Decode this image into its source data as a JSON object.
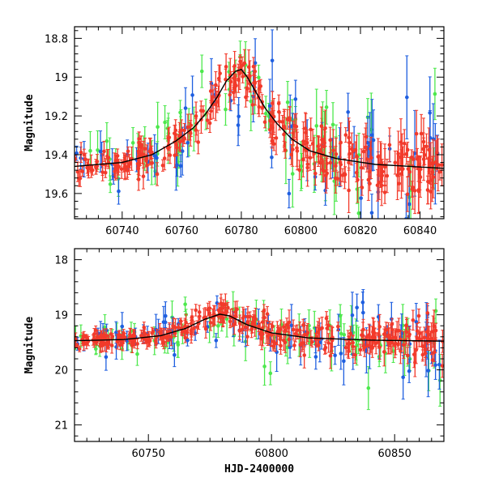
{
  "chart_data": [
    {
      "type": "scatter",
      "ylabel": "Magnitude",
      "xlabel": "",
      "xlim": [
        60724,
        60848
      ],
      "ylim": [
        18.74,
        19.73
      ],
      "y_inverted": true,
      "xticks": [
        60740,
        60760,
        60780,
        60800,
        60820,
        60840
      ],
      "yticks": [
        18.8,
        19,
        19.2,
        19.4,
        19.6
      ],
      "ytick_labels": [
        "18.8",
        "19",
        "19.2",
        "19.4",
        "19.6"
      ],
      "series_colors": {
        "green": "#4de84d",
        "blue": "#1f5fe0",
        "red": "#f23a2b"
      },
      "model_curve": [
        [
          60724,
          19.46
        ],
        [
          60740,
          19.44
        ],
        [
          60750,
          19.4
        ],
        [
          60758,
          19.33
        ],
        [
          60764,
          19.26
        ],
        [
          60768,
          19.19
        ],
        [
          60772,
          19.1
        ],
        [
          60775,
          19.02
        ],
        [
          60778,
          18.97
        ],
        [
          60780,
          18.96
        ],
        [
          60782,
          19.0
        ],
        [
          60785,
          19.08
        ],
        [
          60788,
          19.16
        ],
        [
          60792,
          19.24
        ],
        [
          60797,
          19.32
        ],
        [
          60803,
          19.38
        ],
        [
          60812,
          19.42
        ],
        [
          60825,
          19.45
        ],
        [
          60848,
          19.47
        ]
      ]
    },
    {
      "type": "scatter",
      "ylabel": "Magnitude",
      "xlabel": "HJD-2400000",
      "xlim": [
        60720,
        60870
      ],
      "ylim": [
        17.8,
        21.3
      ],
      "y_inverted": true,
      "xticks": [
        60750,
        60800,
        60850
      ],
      "yticks": [
        18,
        19,
        20,
        21
      ],
      "ytick_labels": [
        "18",
        "19",
        "20",
        "21"
      ],
      "series_colors": {
        "green": "#4de84d",
        "blue": "#1f5fe0",
        "red": "#f23a2b"
      },
      "model_curve": [
        [
          60720,
          19.47
        ],
        [
          60740,
          19.45
        ],
        [
          60755,
          19.38
        ],
        [
          60765,
          19.25
        ],
        [
          60773,
          19.08
        ],
        [
          60779,
          18.99
        ],
        [
          60783,
          19.02
        ],
        [
          60790,
          19.18
        ],
        [
          60800,
          19.33
        ],
        [
          60815,
          19.42
        ],
        [
          60840,
          19.46
        ],
        [
          60870,
          19.48
        ]
      ]
    }
  ]
}
